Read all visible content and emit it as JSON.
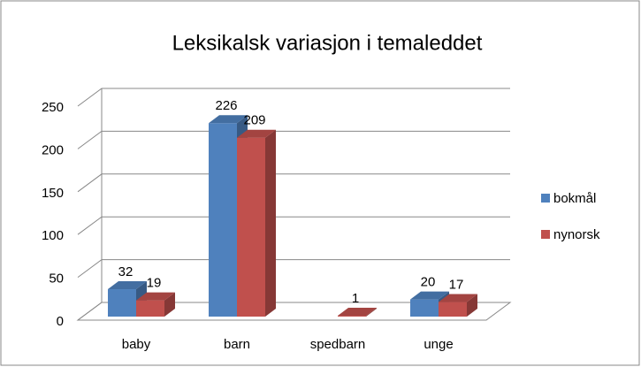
{
  "chart_data": {
    "type": "bar3d",
    "title": "Leksikalsk variasjon i temaleddet",
    "categories": [
      "baby",
      "barn",
      "spedbarn",
      "unge"
    ],
    "series": [
      {
        "name": "bokmål",
        "color": "#4f81bd",
        "values": [
          32,
          226,
          null,
          20
        ]
      },
      {
        "name": "nynorsk",
        "color": "#c0504d",
        "values": [
          19,
          209,
          1,
          17
        ]
      }
    ],
    "ylim": [
      0,
      250
    ],
    "yticks": [
      0,
      50,
      100,
      150,
      200,
      250
    ],
    "grid": true,
    "legend": "right"
  }
}
